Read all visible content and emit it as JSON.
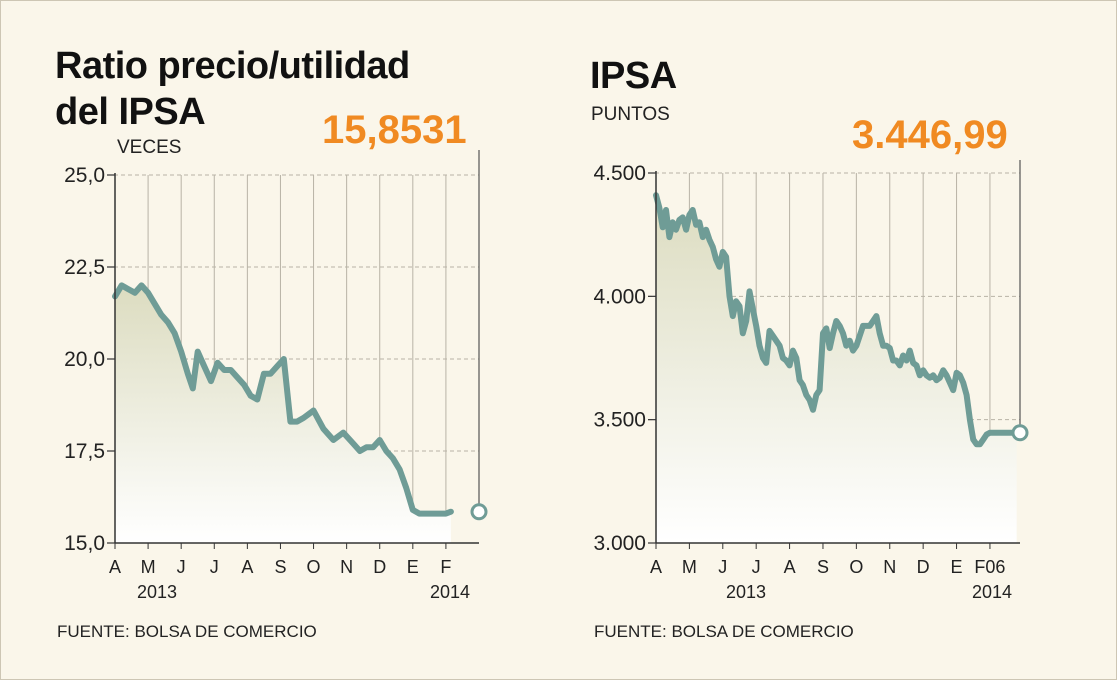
{
  "colors": {
    "background": "#faf6ea",
    "line": "#6f9c96",
    "highlight": "#f08a22",
    "grid": "#b8b3a6",
    "fill_top": "#dcdcc0",
    "fill_bottom": "#ffffff"
  },
  "left": {
    "title_line1": "Ratio precio/utilidad",
    "title_line2": "del IPSA",
    "unit": "VECES",
    "current_value": "15,8531",
    "year_start": "2013",
    "year_end": "2014",
    "source": "FUENTE: BOLSA DE COMERCIO"
  },
  "right": {
    "title": "IPSA",
    "unit": "PUNTOS",
    "current_value": "3.446,99",
    "year_start": "2013",
    "year_end": "2014",
    "source": "FUENTE: BOLSA DE COMERCIO"
  },
  "chart_data": [
    {
      "type": "line",
      "title": "Ratio precio/utilidad del IPSA",
      "ylabel": "VECES",
      "ylim": [
        15.0,
        25.0
      ],
      "yticks": [
        15.0,
        17.5,
        20.0,
        22.5,
        25.0
      ],
      "ytick_labels": [
        "15,0",
        "17,5",
        "20,0",
        "22,5",
        "25,0"
      ],
      "xlim": [
        0,
        11
      ],
      "month_labels": [
        "A",
        "M",
        "J",
        "J",
        "A",
        "S",
        "O",
        "N",
        "D",
        "E",
        "F"
      ],
      "grid": true,
      "series": [
        {
          "x": [
            0,
            0.2,
            0.4,
            0.6,
            0.8,
            1.0,
            1.2,
            1.4,
            1.6,
            1.8,
            2.0,
            2.2,
            2.35,
            2.5,
            2.7,
            2.9,
            3.1,
            3.3,
            3.5,
            3.7,
            3.9,
            4.1,
            4.3,
            4.5,
            4.7,
            4.9,
            5.1,
            5.3,
            5.5,
            5.7,
            5.85,
            6.0,
            6.3,
            6.6,
            6.9,
            7.2,
            7.4,
            7.6,
            7.8,
            8.0,
            8.2,
            8.4,
            8.6,
            8.8,
            9.0,
            9.2,
            9.4,
            9.6,
            9.8,
            10.0,
            10.15
          ],
          "y": [
            21.7,
            22.0,
            21.9,
            21.8,
            22.0,
            21.8,
            21.5,
            21.2,
            21.0,
            20.7,
            20.2,
            19.6,
            19.2,
            20.2,
            19.8,
            19.4,
            19.9,
            19.7,
            19.7,
            19.5,
            19.3,
            19.0,
            18.9,
            19.6,
            19.6,
            19.8,
            20.0,
            18.3,
            18.3,
            18.4,
            18.5,
            18.6,
            18.1,
            17.8,
            18.0,
            17.7,
            17.5,
            17.6,
            17.6,
            17.8,
            17.5,
            17.3,
            17.0,
            16.5,
            15.9,
            15.8,
            15.8,
            15.8,
            15.8,
            15.8,
            15.85
          ]
        }
      ],
      "annotation": "15,8531"
    },
    {
      "type": "line",
      "title": "IPSA",
      "ylabel": "PUNTOS",
      "ylim": [
        3000,
        4500
      ],
      "yticks": [
        3000,
        3500,
        4000,
        4500
      ],
      "ytick_labels": [
        "3.000",
        "3.500",
        "4.000",
        "4.500"
      ],
      "xlim": [
        0,
        10.9
      ],
      "month_labels": [
        "A",
        "M",
        "J",
        "J",
        "A",
        "S",
        "O",
        "N",
        "D",
        "E",
        "F06"
      ],
      "grid": true,
      "series": [
        {
          "x": [
            0,
            0.1,
            0.2,
            0.3,
            0.4,
            0.5,
            0.6,
            0.7,
            0.8,
            0.9,
            1.0,
            1.1,
            1.2,
            1.3,
            1.4,
            1.5,
            1.6,
            1.7,
            1.8,
            1.9,
            2.0,
            2.1,
            2.2,
            2.3,
            2.4,
            2.5,
            2.6,
            2.7,
            2.8,
            2.9,
            3.0,
            3.1,
            3.2,
            3.3,
            3.4,
            3.5,
            3.6,
            3.7,
            3.8,
            3.9,
            4.0,
            4.1,
            4.2,
            4.3,
            4.4,
            4.5,
            4.6,
            4.7,
            4.8,
            4.9,
            5.0,
            5.1,
            5.2,
            5.3,
            5.4,
            5.5,
            5.6,
            5.7,
            5.8,
            5.9,
            6.0,
            6.1,
            6.2,
            6.3,
            6.4,
            6.5,
            6.6,
            6.7,
            6.8,
            6.9,
            7.0,
            7.1,
            7.2,
            7.3,
            7.4,
            7.5,
            7.6,
            7.7,
            7.8,
            7.9,
            8.0,
            8.1,
            8.2,
            8.3,
            8.4,
            8.5,
            8.6,
            8.7,
            8.8,
            8.9,
            9.0,
            9.1,
            9.2,
            9.3,
            9.4,
            9.5,
            9.6,
            9.7,
            9.8,
            9.9,
            10.0,
            10.1,
            10.2,
            10.3,
            10.4,
            10.5,
            10.6,
            10.7,
            10.8
          ],
          "y": [
            4410,
            4360,
            4280,
            4350,
            4240,
            4300,
            4270,
            4310,
            4320,
            4270,
            4330,
            4350,
            4290,
            4300,
            4240,
            4270,
            4230,
            4200,
            4150,
            4120,
            4180,
            4160,
            4000,
            3920,
            3980,
            3960,
            3850,
            3900,
            4020,
            3950,
            3880,
            3800,
            3750,
            3730,
            3860,
            3840,
            3820,
            3800,
            3750,
            3740,
            3720,
            3780,
            3750,
            3660,
            3640,
            3600,
            3580,
            3540,
            3600,
            3620,
            3850,
            3870,
            3790,
            3850,
            3900,
            3880,
            3850,
            3800,
            3820,
            3780,
            3800,
            3840,
            3880,
            3880,
            3880,
            3900,
            3920,
            3850,
            3800,
            3800,
            3790,
            3740,
            3740,
            3720,
            3760,
            3740,
            3780,
            3730,
            3720,
            3680,
            3700,
            3680,
            3670,
            3680,
            3660,
            3670,
            3700,
            3680,
            3650,
            3620,
            3690,
            3680,
            3650,
            3600,
            3500,
            3420,
            3400,
            3400,
            3420,
            3440,
            3447,
            3447,
            3447,
            3447,
            3447,
            3447,
            3447,
            3447,
            3447
          ],
          "color": "#6f9c96"
        }
      ],
      "annotation": "3.446,99"
    }
  ]
}
